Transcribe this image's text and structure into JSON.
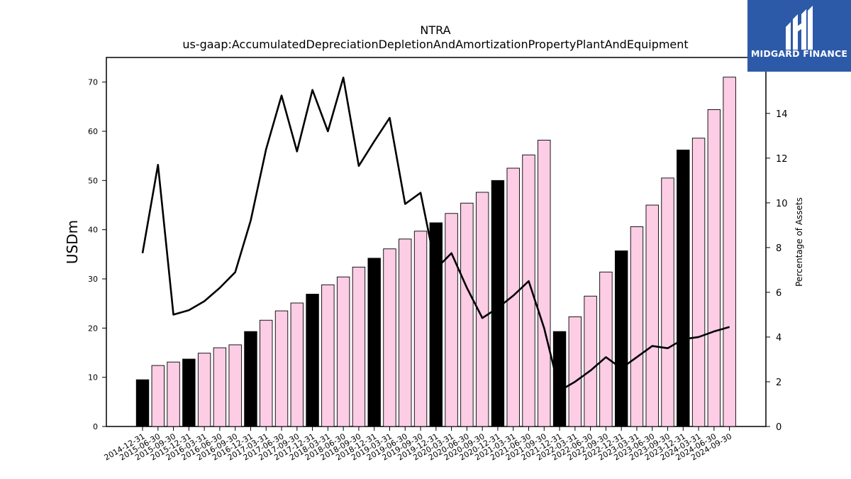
{
  "chart_data": {
    "type": "bar",
    "title": "NTRA",
    "subtitle": "us-gaap:AccumulatedDepreciationDepletionAndAmortizationPropertyPlantAndEquipment",
    "ylabel": "USDm",
    "y2label": "Percentage of Assets",
    "ylim": [
      0,
      75
    ],
    "y2lim": [
      0,
      16.5
    ],
    "yticks": [
      0,
      10,
      20,
      30,
      40,
      50,
      60,
      70
    ],
    "y2ticks": [
      0,
      2,
      4,
      6,
      8,
      10,
      12,
      14
    ],
    "categories": [
      "2014-12-31",
      "2015-06-30",
      "2015-09-30",
      "2015-12-31",
      "2016-03-31",
      "2016-06-30",
      "2016-09-30",
      "2016-12-31",
      "2017-03-31",
      "2017-06-30",
      "2017-09-30",
      "2017-12-31",
      "2018-03-31",
      "2018-06-30",
      "2018-09-30",
      "2018-12-31",
      "2019-03-31",
      "2019-06-30",
      "2019-09-30",
      "2019-12-31",
      "2020-03-31",
      "2020-06-30",
      "2020-09-30",
      "2020-12-31",
      "2021-03-31",
      "2021-06-30",
      "2021-09-30",
      "2021-12-31",
      "2022-03-31",
      "2022-06-30",
      "2022-09-30",
      "2022-12-31",
      "2023-03-31",
      "2023-06-30",
      "2023-09-30",
      "2023-12-31",
      "2024-03-31",
      "2024-06-30",
      "2024-09-30"
    ],
    "series": [
      {
        "type": "bar",
        "values": [
          9.5,
          12.4,
          13.1,
          13.7,
          14.9,
          16.0,
          16.6,
          19.3,
          21.6,
          23.5,
          25.1,
          26.9,
          28.8,
          30.4,
          32.4,
          34.2,
          36.1,
          38.1,
          39.7,
          41.4,
          43.3,
          45.4,
          47.6,
          50.0,
          52.5,
          55.2,
          58.2,
          19.3,
          22.3,
          26.5,
          31.4,
          35.7,
          40.6,
          45.0,
          50.5,
          56.2,
          58.6,
          64.4,
          71.0
        ],
        "annual_flags": [
          true,
          false,
          false,
          true,
          false,
          false,
          false,
          true,
          false,
          false,
          false,
          true,
          false,
          false,
          false,
          true,
          false,
          false,
          false,
          true,
          false,
          false,
          false,
          true,
          false,
          false,
          false,
          true,
          false,
          false,
          false,
          true,
          false,
          false,
          false,
          true,
          false,
          false,
          false
        ]
      },
      {
        "type": "line",
        "axis": "right",
        "values": [
          7.75,
          11.7,
          5.0,
          5.2,
          5.6,
          6.2,
          6.9,
          9.2,
          12.4,
          14.8,
          12.3,
          15.05,
          13.2,
          15.6,
          11.65,
          12.75,
          13.8,
          9.95,
          10.45,
          7.05,
          7.75,
          6.2,
          4.85,
          5.3,
          5.85,
          6.5,
          4.4,
          1.6,
          2.0,
          2.5,
          3.1,
          2.6,
          3.1,
          3.6,
          3.5,
          3.9,
          4.0,
          4.25,
          4.45
        ]
      }
    ],
    "colors": {
      "bar_annual": "#000000",
      "bar_quarter": "#fccde5",
      "bar_edge": "#000000",
      "line": "#000000",
      "logo_bg": "#2d5aa8"
    }
  },
  "logo": {
    "text": "MIDGARD FINANCE",
    "icon": "midgard-logo-icon"
  }
}
